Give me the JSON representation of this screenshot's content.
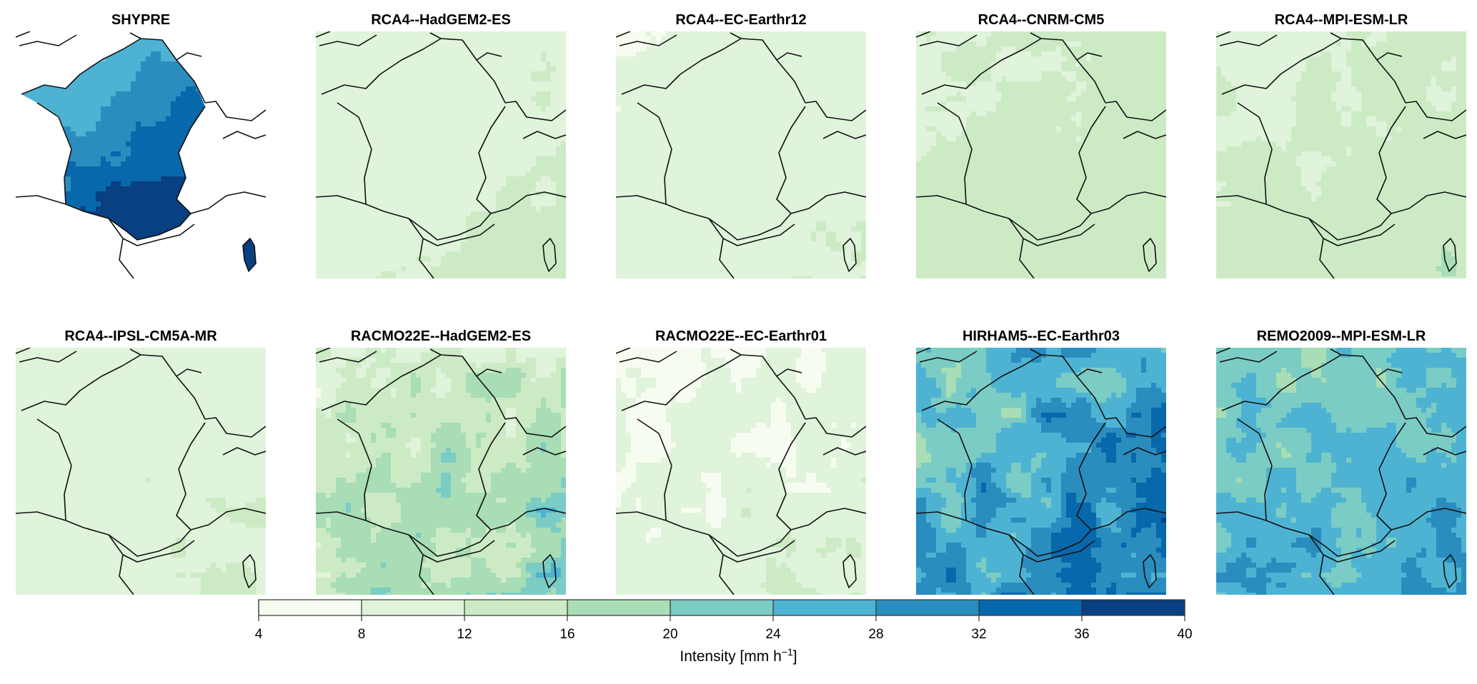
{
  "panels": [
    {
      "title": "SHYPRE",
      "level": 28,
      "spread": 6,
      "mask": true
    },
    {
      "title": "RCA4--HadGEM2-ES",
      "level": 11,
      "spread": 1.5
    },
    {
      "title": "RCA4--EC-Earthr12",
      "level": 10,
      "spread": 1.5
    },
    {
      "title": "RCA4--CNRM-CM5",
      "level": 13,
      "spread": 2
    },
    {
      "title": "RCA4--MPI-ESM-LR",
      "level": 13,
      "spread": 2
    },
    {
      "title": "RCA4--IPSL-CM5A-MR",
      "level": 11,
      "spread": 1
    },
    {
      "title": "RACMO22E--HadGEM2-ES",
      "level": 15,
      "spread": 6
    },
    {
      "title": "RACMO22E--EC-Earthr01",
      "level": 9,
      "spread": 3
    },
    {
      "title": "HIRHAM5--EC-Earthr03",
      "level": 27,
      "spread": 7
    },
    {
      "title": "REMO2009--MPI-ESM-LR",
      "level": 24,
      "spread": 5
    }
  ],
  "colorbar": {
    "ticks": [
      "4",
      "8",
      "12",
      "16",
      "20",
      "24",
      "28",
      "32",
      "36",
      "40"
    ],
    "bins": [
      4,
      8,
      12,
      16,
      20,
      24,
      28,
      32,
      36,
      40
    ],
    "colors": [
      "#f7fcf0",
      "#e0f3db",
      "#ccebc5",
      "#a8ddb5",
      "#7bccc4",
      "#4eb3d3",
      "#2b8cbe",
      "#0868ac",
      "#084081"
    ],
    "title_pre": "Intensity [mm h",
    "title_sup": "−1",
    "title_post": "]"
  }
}
